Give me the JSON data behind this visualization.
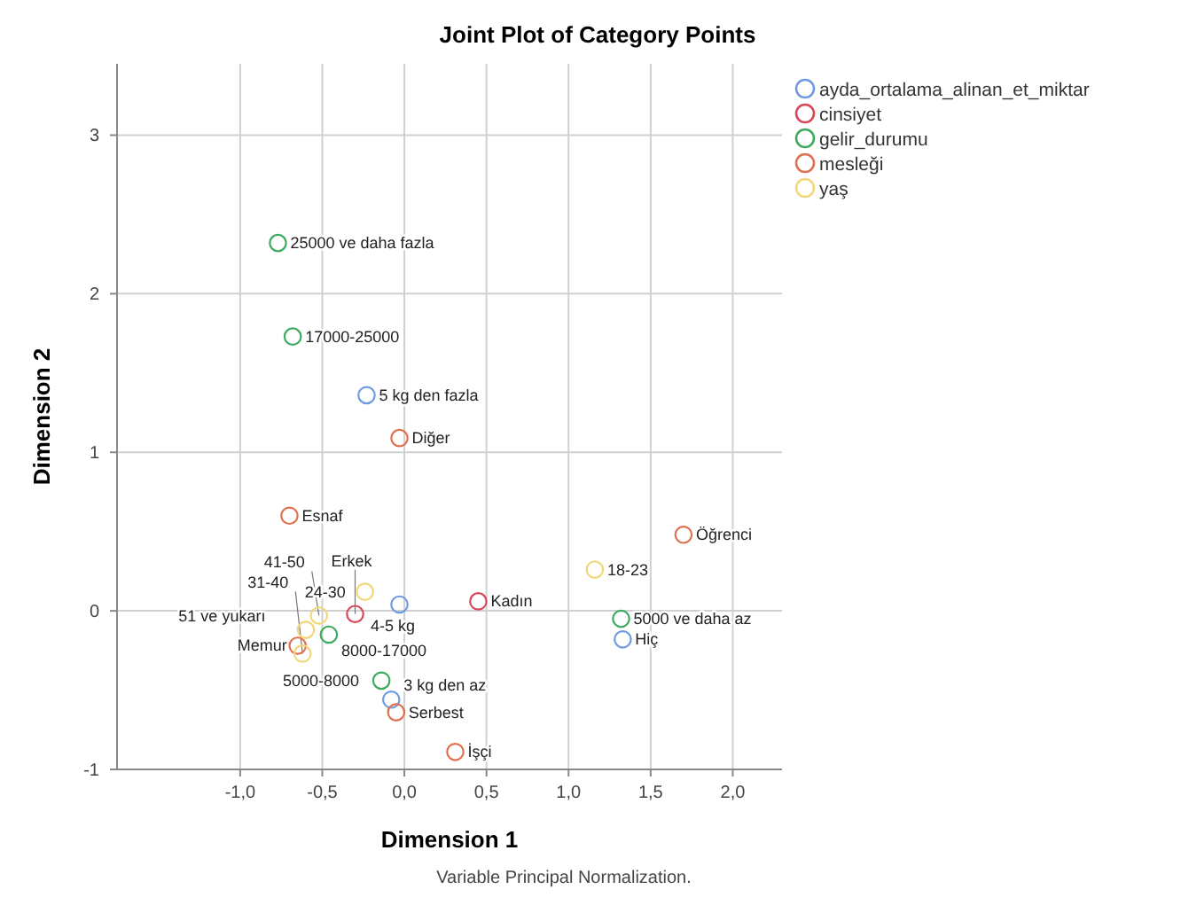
{
  "chart_data": {
    "type": "scatter",
    "title": "Joint Plot of Category Points",
    "xlabel": "Dimension 1",
    "ylabel": "Dimension 2",
    "xlim": [
      -1.75,
      2.3
    ],
    "xticks": [
      {
        "value": -1,
        "label": "-1,0"
      },
      {
        "value": -0.5,
        "label": "-0,5"
      },
      {
        "value": 0,
        "label": "0,0"
      },
      {
        "value": 0.5,
        "label": "0,5"
      },
      {
        "value": 1,
        "label": "1,0"
      },
      {
        "value": 1.5,
        "label": "1,5"
      },
      {
        "value": 2,
        "label": "2,0"
      }
    ],
    "ylim": [
      -1,
      3.45
    ],
    "yticks": [
      -1,
      0,
      1,
      2,
      3
    ],
    "grid": true,
    "legend": "top right",
    "marker": "circle",
    "series": [
      {
        "name": "ayda_ortalama_alinan_et_miktar",
        "color": "#6f9be0",
        "x": [
          -0.23,
          -0.03,
          -0.08,
          1.33
        ],
        "values": [
          1.36,
          0.04,
          -0.56,
          -0.18
        ]
      },
      {
        "name": "cinsiyet",
        "color": "#d9485a",
        "x": [
          0.45,
          -0.3
        ],
        "values": [
          0.06,
          -0.02
        ]
      },
      {
        "name": "gelir_durumu",
        "color": "#3faa5f",
        "x": [
          -0.77,
          -0.68,
          -0.46,
          -0.14,
          1.32
        ],
        "values": [
          2.32,
          1.73,
          -0.15,
          -0.44,
          -0.05
        ]
      },
      {
        "name": "mesleği",
        "color": "#e07050",
        "x": [
          -0.03,
          -0.7,
          1.7,
          -0.65,
          -0.05,
          0.31
        ],
        "values": [
          1.09,
          0.6,
          0.48,
          -0.22,
          -0.64,
          -0.89
        ]
      },
      {
        "name": "yaş",
        "color": "#f2d77a",
        "x": [
          -0.24,
          -0.52,
          -0.6,
          -0.62,
          1.16
        ],
        "values": [
          0.12,
          -0.03,
          -0.12,
          -0.27,
          0.26
        ]
      }
    ],
    "annotations": [
      {
        "text": "5 kg den fazla",
        "x": -0.23,
        "y": 1.36
      },
      {
        "text": "4-5 kg",
        "x": -0.03,
        "y": 0.04
      },
      {
        "text": "3 kg den az",
        "x": -0.08,
        "y": -0.56
      },
      {
        "text": "Hiç",
        "x": 1.33,
        "y": -0.18
      },
      {
        "text": "Kadın",
        "x": 0.45,
        "y": 0.06
      },
      {
        "text": "Erkek",
        "x": -0.3,
        "y": -0.02
      },
      {
        "text": "25000 ve daha fazla",
        "x": -0.77,
        "y": 2.32
      },
      {
        "text": "17000-25000",
        "x": -0.68,
        "y": 1.73
      },
      {
        "text": "8000-17000",
        "x": -0.46,
        "y": -0.15
      },
      {
        "text": "5000-8000",
        "x": -0.14,
        "y": -0.44
      },
      {
        "text": "5000 ve daha az",
        "x": 1.32,
        "y": -0.05
      },
      {
        "text": "Diğer",
        "x": -0.03,
        "y": 1.09
      },
      {
        "text": "Esnaf",
        "x": -0.7,
        "y": 0.6
      },
      {
        "text": "Öğrenci",
        "x": 1.7,
        "y": 0.48
      },
      {
        "text": "Memur",
        "x": -0.65,
        "y": -0.22
      },
      {
        "text": "Serbest",
        "x": -0.05,
        "y": -0.64
      },
      {
        "text": "İşçi",
        "x": 0.31,
        "y": -0.89
      },
      {
        "text": "24-30",
        "x": -0.24,
        "y": 0.12
      },
      {
        "text": "41-50",
        "x": -0.52,
        "y": -0.03
      },
      {
        "text": "51 ve yukarı",
        "x": -0.6,
        "y": -0.12
      },
      {
        "text": "31-40",
        "x": -0.62,
        "y": -0.27
      },
      {
        "text": "18-23",
        "x": 1.16,
        "y": 0.26
      },
      "Variable Principal Normalization."
    ]
  }
}
